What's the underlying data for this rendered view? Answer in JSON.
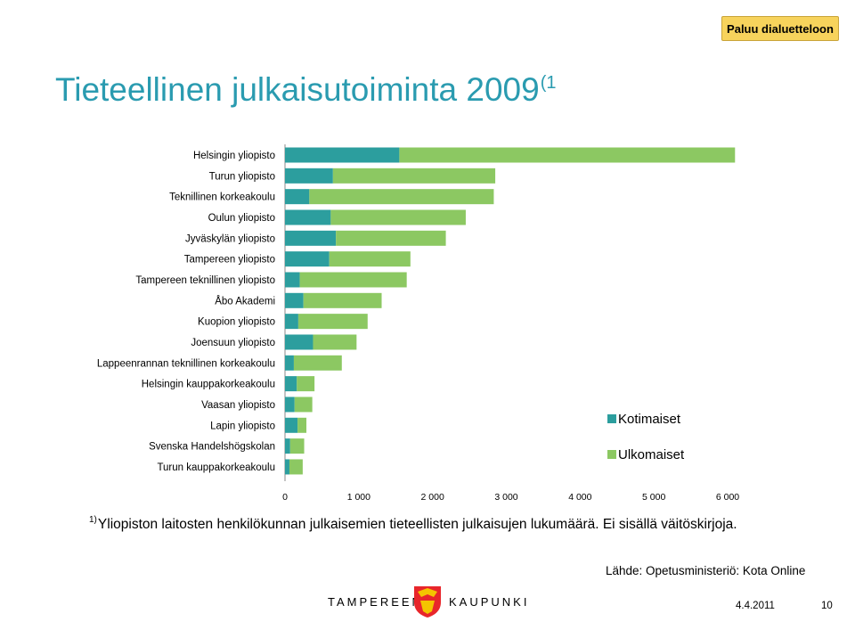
{
  "back_button": {
    "label": "Paluu dialuetteloon"
  },
  "title": {
    "text": "Tieteellinen julkaisutoiminta 2009",
    "sup": "(1"
  },
  "colors": {
    "title": "#2a9bb0",
    "kotimaiset": "#2c9e9e",
    "ulkomaiset": "#8cc862",
    "button": "#f7d35c"
  },
  "chart_data": {
    "type": "bar",
    "orientation": "horizontal",
    "stacked": true,
    "categories": [
      "Helsingin yliopisto",
      "Turun yliopisto",
      "Teknillinen korkeakoulu",
      "Oulun yliopisto",
      "Jyväskylän yliopisto",
      "Tampereen yliopisto",
      "Tampereen teknillinen yliopisto",
      "Åbo Akademi",
      "Kuopion yliopisto",
      "Joensuun yliopisto",
      "Lappeenrannan teknillinen korkeakoulu",
      "Helsingin kauppakorkeakoulu",
      "Vaasan yliopisto",
      "Lapin yliopisto",
      "Svenska Handelshögskolan",
      "Turun kauppakorkeakoulu"
    ],
    "series": [
      {
        "name": "Kotimaiset",
        "color": "#2c9e9e",
        "values": [
          1550,
          650,
          330,
          620,
          690,
          600,
          200,
          250,
          180,
          380,
          120,
          160,
          130,
          170,
          70,
          60
        ]
      },
      {
        "name": "Ulkomaiset",
        "color": "#8cc862",
        "values": [
          4550,
          2200,
          2500,
          1830,
          1490,
          1100,
          1450,
          1060,
          940,
          590,
          650,
          240,
          240,
          120,
          190,
          180
        ]
      }
    ],
    "xlim": [
      0,
      6000
    ],
    "xticks": [
      "0",
      "1 000",
      "2 000",
      "3 000",
      "4 000",
      "5 000",
      "6 000"
    ],
    "legend_position": "right"
  },
  "footnote": {
    "sup": "1)",
    "text": "Yliopiston laitosten henkilökunnan julkaisemien tieteellisten julkaisujen lukumäärä. Ei sisällä väitöskirjoja."
  },
  "source": "Lähde: Opetusministeriö: Kota Online",
  "logo": {
    "left": "TAMPEREEN",
    "right": "KAUPUNKI"
  },
  "date": "4.4.2011",
  "page_number": "10"
}
